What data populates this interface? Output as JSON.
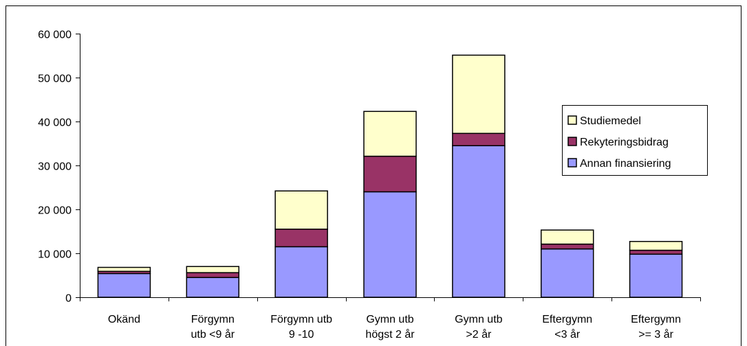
{
  "chart_data": {
    "type": "stacked_bar",
    "categories": [
      [
        "Okänd"
      ],
      [
        "Förgymn",
        "utb <9 år"
      ],
      [
        "Förgymn utb",
        "9 -10"
      ],
      [
        "Gymn utb",
        "högst 2 år"
      ],
      [
        "Gymn utb",
        ">2 år"
      ],
      [
        "Eftergymn",
        "<3 år"
      ],
      [
        "Eftergymn",
        ">= 3 år"
      ]
    ],
    "series": [
      {
        "name": "Annan finansiering",
        "color": "#9999ff",
        "values": [
          5400,
          4500,
          11500,
          24000,
          34500,
          11000,
          9800
        ]
      },
      {
        "name": "Rekyteringsbidrag",
        "color": "#993366",
        "values": [
          500,
          1100,
          4000,
          8100,
          2800,
          1100,
          900
        ]
      },
      {
        "name": "Studiemedel",
        "color": "#ffffcc",
        "values": [
          900,
          1400,
          8700,
          10200,
          17800,
          3200,
          2000
        ]
      }
    ],
    "ylim": [
      0,
      60000
    ],
    "yticks": [
      0,
      {
        "value": 10000,
        "label": "10 000"
      },
      {
        "value": 20000,
        "label": "20 000"
      },
      {
        "value": 30000,
        "label": "30 000"
      },
      {
        "value": 40000,
        "label": "40 000"
      },
      {
        "value": 50000,
        "label": "50 000"
      },
      {
        "value": 60000,
        "label": "60 000"
      }
    ],
    "legend": "right",
    "legend_order": "reversed"
  }
}
